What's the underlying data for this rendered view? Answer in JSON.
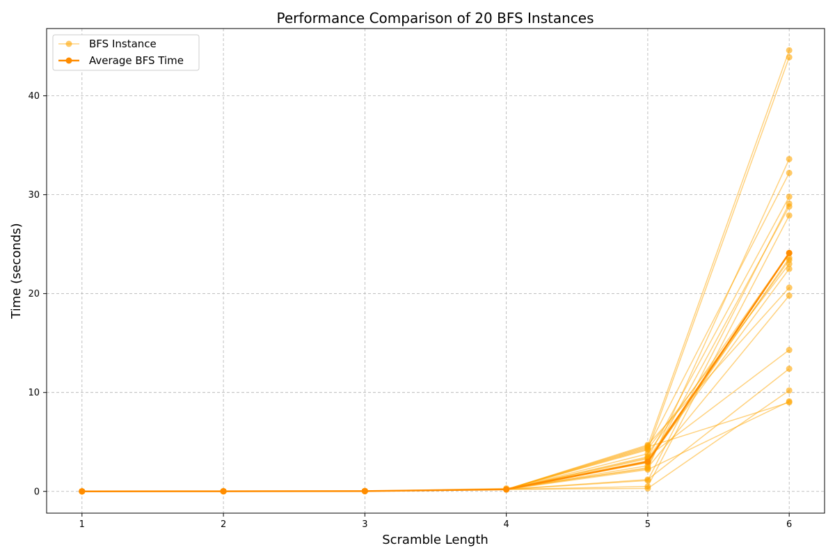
{
  "chart_data": {
    "type": "line",
    "title": "Performance Comparison of 20 BFS Instances",
    "xlabel": "Scramble Length",
    "ylabel": "Time (seconds)",
    "x": [
      1,
      2,
      3,
      4,
      5,
      6
    ],
    "xlim": [
      0.75,
      6.25
    ],
    "ylim": [
      -2.2,
      46.8
    ],
    "xticks": [
      "1",
      "2",
      "3",
      "4",
      "5",
      "6"
    ],
    "yticks": [
      0,
      10,
      20,
      30,
      40
    ],
    "grid": true,
    "legend_position": "top-left",
    "legend": [
      {
        "label": "BFS Instance",
        "color": "#ffa500",
        "style": "instance"
      },
      {
        "label": "Average BFS Time",
        "color": "#ff8c00",
        "style": "average"
      }
    ],
    "instance_color": "#ffa500",
    "average_color": "#ff8c00",
    "instances": [
      {
        "values": [
          0.001,
          0.01,
          0.03,
          0.2,
          4.6,
          44.6
        ]
      },
      {
        "values": [
          0.001,
          0.01,
          0.03,
          0.2,
          4.2,
          43.9
        ]
      },
      {
        "values": [
          0.001,
          0.01,
          0.03,
          0.3,
          2.3,
          33.6
        ]
      },
      {
        "values": [
          0.001,
          0.01,
          0.03,
          0.2,
          4.4,
          32.2
        ]
      },
      {
        "values": [
          0.001,
          0.01,
          0.03,
          0.2,
          3.4,
          29.8
        ]
      },
      {
        "values": [
          0.001,
          0.01,
          0.03,
          0.2,
          1.1,
          29.1
        ]
      },
      {
        "values": [
          0.001,
          0.01,
          0.03,
          0.2,
          2.6,
          28.8
        ]
      },
      {
        "values": [
          0.001,
          0.01,
          0.03,
          0.2,
          0.5,
          27.9
        ]
      },
      {
        "values": [
          0.001,
          0.01,
          0.03,
          0.2,
          3.8,
          24.1
        ]
      },
      {
        "values": [
          0.001,
          0.01,
          0.03,
          0.2,
          2.9,
          23.6
        ]
      },
      {
        "values": [
          0.001,
          0.01,
          0.03,
          0.2,
          4.3,
          23.0
        ]
      },
      {
        "values": [
          0.001,
          0.01,
          0.03,
          0.2,
          3.1,
          22.5
        ]
      },
      {
        "values": [
          0.001,
          0.01,
          0.03,
          0.2,
          4.7,
          20.6
        ]
      },
      {
        "values": [
          0.001,
          0.01,
          0.03,
          0.2,
          2.4,
          19.8
        ]
      },
      {
        "values": [
          0.001,
          0.01,
          0.03,
          0.2,
          3.5,
          14.3
        ]
      },
      {
        "values": [
          0.001,
          0.01,
          0.03,
          0.2,
          1.2,
          12.4
        ]
      },
      {
        "values": [
          0.001,
          0.01,
          0.03,
          0.2,
          0.3,
          10.2
        ]
      },
      {
        "values": [
          0.001,
          0.01,
          0.03,
          0.2,
          4.5,
          9.0
        ]
      },
      {
        "values": [
          0.001,
          0.01,
          0.03,
          0.2,
          2.2,
          9.1
        ]
      },
      {
        "values": [
          0.001,
          0.01,
          0.03,
          0.2,
          3.3,
          23.4
        ]
      }
    ],
    "average": {
      "name": "Average BFS Time",
      "values": [
        0.001,
        0.01,
        0.03,
        0.2,
        3.0,
        24.1
      ]
    }
  }
}
